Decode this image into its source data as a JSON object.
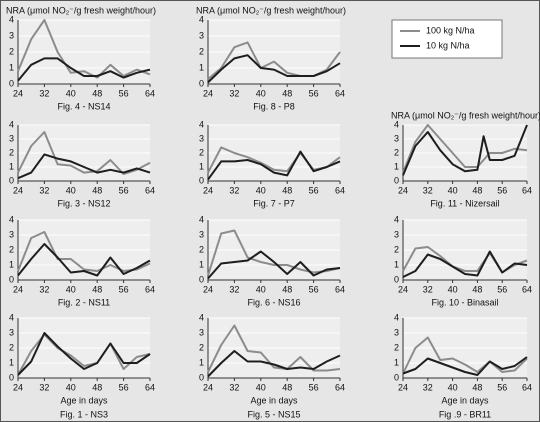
{
  "legend": [
    {
      "name": "100 kg N/ha",
      "color": "#8c8c8c"
    },
    {
      "name": "10 kg N/ha",
      "color": "#1e1e1e"
    }
  ],
  "chart_data": [
    {
      "type": "line",
      "title": "NRA (μmol NO₂⁻/g fresh weight/hour)",
      "caption": "Fig. 4 - NS14",
      "x": [
        24,
        28,
        32,
        36,
        40,
        44,
        48,
        52,
        56,
        60,
        64
      ],
      "series": [
        {
          "values": [
            0.8,
            2.8,
            4.0,
            2.0,
            0.7,
            0.8,
            0.4,
            1.2,
            0.5,
            0.9,
            0.6
          ]
        },
        {
          "values": [
            0.2,
            1.2,
            1.6,
            1.6,
            1.0,
            0.5,
            0.5,
            0.8,
            0.4,
            0.7,
            0.9
          ]
        }
      ],
      "xlim": [
        24,
        64
      ],
      "ylim": [
        0,
        4
      ],
      "xticks": [
        24,
        32,
        40,
        48,
        56,
        64
      ],
      "yticks": [
        0,
        1,
        2,
        3,
        4
      ]
    },
    {
      "type": "line",
      "caption": "Fig. 3 - NS12",
      "x": [
        24,
        28,
        32,
        36,
        40,
        44,
        48,
        52,
        56,
        60,
        64
      ],
      "series": [
        {
          "values": [
            0.6,
            2.5,
            3.5,
            1.2,
            1.1,
            0.6,
            0.7,
            1.5,
            0.5,
            0.8,
            1.3
          ]
        },
        {
          "values": [
            0.2,
            0.6,
            1.9,
            1.6,
            1.4,
            1.0,
            0.6,
            0.8,
            0.6,
            0.9,
            0.6
          ]
        }
      ],
      "xlim": [
        24,
        64
      ],
      "ylim": [
        0,
        4
      ],
      "xticks": [
        24,
        32,
        40,
        48,
        56,
        64
      ],
      "yticks": [
        0,
        1,
        2,
        3,
        4
      ]
    },
    {
      "type": "line",
      "caption": "Fig. 2 - NS11",
      "x": [
        24,
        28,
        32,
        36,
        40,
        44,
        48,
        52,
        56,
        60,
        64
      ],
      "series": [
        {
          "values": [
            0.6,
            2.8,
            3.2,
            1.4,
            1.4,
            0.7,
            0.6,
            1.0,
            0.6,
            0.7,
            1.1
          ]
        },
        {
          "values": [
            0.3,
            1.4,
            2.4,
            1.5,
            0.5,
            0.6,
            0.3,
            1.5,
            0.4,
            0.8,
            1.3
          ]
        }
      ],
      "xlim": [
        24,
        64
      ],
      "ylim": [
        0,
        4
      ],
      "xticks": [
        24,
        32,
        40,
        48,
        56,
        64
      ],
      "yticks": [
        0,
        1,
        2,
        3,
        4
      ]
    },
    {
      "type": "line",
      "xlabel": "Age in days",
      "caption": "Fig. 1 - NS3",
      "x": [
        24,
        28,
        32,
        36,
        40,
        44,
        48,
        52,
        56,
        60,
        64
      ],
      "series": [
        {
          "values": [
            0.2,
            1.8,
            2.9,
            2.0,
            1.5,
            0.8,
            1.0,
            2.3,
            0.6,
            1.4,
            1.6
          ]
        },
        {
          "values": [
            0.2,
            1.1,
            3.0,
            2.1,
            1.3,
            0.6,
            1.0,
            2.3,
            1.0,
            1.0,
            1.6
          ]
        }
      ],
      "xlim": [
        24,
        64
      ],
      "ylim": [
        0,
        4
      ],
      "xticks": [
        24,
        32,
        40,
        48,
        56,
        64
      ],
      "yticks": [
        0,
        1,
        2,
        3,
        4
      ]
    },
    {
      "type": "line",
      "title": "NRA (μmol NO₂⁻/g fresh weight/hour)",
      "caption": "Fig. 8 - P8",
      "x": [
        24,
        28,
        32,
        36,
        40,
        44,
        48,
        52,
        56,
        60,
        64
      ],
      "series": [
        {
          "values": [
            0.3,
            1.0,
            2.3,
            2.6,
            1.0,
            1.4,
            0.7,
            0.5,
            0.5,
            0.9,
            2.0
          ]
        },
        {
          "values": [
            0.1,
            0.9,
            1.6,
            1.8,
            1.0,
            0.9,
            0.5,
            0.5,
            0.5,
            0.8,
            1.3
          ]
        }
      ],
      "xlim": [
        24,
        64
      ],
      "ylim": [
        0,
        4
      ],
      "xticks": [
        24,
        32,
        40,
        48,
        56,
        64
      ],
      "yticks": [
        0,
        1,
        2,
        3,
        4
      ]
    },
    {
      "type": "line",
      "caption": "Fig. 7 - P7",
      "x": [
        24,
        28,
        32,
        36,
        40,
        44,
        48,
        52,
        56,
        60,
        64
      ],
      "series": [
        {
          "values": [
            0.6,
            2.4,
            2.0,
            1.7,
            1.3,
            0.8,
            0.7,
            2.0,
            0.8,
            1.0,
            1.7
          ]
        },
        {
          "values": [
            0.1,
            1.4,
            1.4,
            1.5,
            1.2,
            0.6,
            0.4,
            2.1,
            0.7,
            1.0,
            1.4
          ]
        }
      ],
      "xlim": [
        24,
        64
      ],
      "ylim": [
        0,
        4
      ],
      "xticks": [
        24,
        32,
        40,
        48,
        56,
        64
      ],
      "yticks": [
        0,
        1,
        2,
        3,
        4
      ]
    },
    {
      "type": "line",
      "caption": "Fig. 6 - NS16",
      "x": [
        24,
        28,
        32,
        36,
        40,
        44,
        48,
        52,
        56,
        60,
        64
      ],
      "series": [
        {
          "values": [
            0.3,
            3.1,
            3.3,
            1.5,
            1.2,
            1.0,
            1.0,
            0.7,
            0.5,
            0.6,
            0.8
          ]
        },
        {
          "values": [
            0.1,
            1.1,
            1.2,
            1.3,
            1.9,
            1.2,
            0.4,
            1.2,
            0.3,
            0.7,
            0.8
          ]
        }
      ],
      "xlim": [
        24,
        64
      ],
      "ylim": [
        0,
        4
      ],
      "xticks": [
        24,
        32,
        40,
        48,
        56,
        64
      ],
      "yticks": [
        0,
        1,
        2,
        3,
        4
      ]
    },
    {
      "type": "line",
      "xlabel": "Age in days",
      "caption": "Fig. 5 - NS15",
      "x": [
        24,
        28,
        32,
        36,
        40,
        44,
        48,
        52,
        56,
        60,
        64
      ],
      "series": [
        {
          "values": [
            0.4,
            2.2,
            3.5,
            1.8,
            1.7,
            0.7,
            0.6,
            1.4,
            0.5,
            0.5,
            0.6
          ]
        },
        {
          "values": [
            0.1,
            1.0,
            1.8,
            1.1,
            1.1,
            0.9,
            0.6,
            0.7,
            0.6,
            1.1,
            1.5
          ]
        }
      ],
      "xlim": [
        24,
        64
      ],
      "ylim": [
        0,
        4
      ],
      "xticks": [
        24,
        32,
        40,
        48,
        56,
        64
      ],
      "yticks": [
        0,
        1,
        2,
        3,
        4
      ]
    },
    {
      "type": "line",
      "title": "NRA (μmol NO₂⁻/g fresh weight/hour)",
      "caption": "Fig. 11 - Nizersail",
      "x": [
        24,
        28,
        32,
        36,
        40,
        44,
        48,
        50,
        52,
        56,
        60,
        64
      ],
      "series": [
        {
          "values": [
            0.6,
            2.8,
            4.0,
            3.0,
            2.0,
            1.0,
            1.0,
            1.5,
            2.0,
            2.0,
            2.3,
            2.2
          ]
        },
        {
          "values": [
            0.4,
            2.5,
            3.5,
            2.2,
            1.2,
            0.7,
            0.8,
            3.2,
            1.5,
            1.5,
            1.8,
            4.0
          ]
        }
      ],
      "xlim": [
        24,
        64
      ],
      "ylim": [
        0,
        4
      ],
      "xticks": [
        24,
        32,
        40,
        48,
        56,
        64
      ],
      "yticks": [
        0,
        1,
        2,
        3,
        4
      ]
    },
    {
      "type": "line",
      "caption": "Fig. 10 - Binasail",
      "x": [
        24,
        28,
        32,
        36,
        40,
        44,
        48,
        52,
        56,
        60,
        64
      ],
      "series": [
        {
          "values": [
            0.6,
            2.1,
            2.2,
            1.6,
            0.9,
            0.6,
            0.6,
            1.8,
            0.5,
            1.0,
            1.3
          ]
        },
        {
          "values": [
            0.2,
            0.6,
            1.7,
            1.4,
            0.9,
            0.4,
            0.3,
            1.9,
            0.5,
            1.1,
            1.0
          ]
        }
      ],
      "xlim": [
        24,
        64
      ],
      "ylim": [
        0,
        4
      ],
      "xticks": [
        24,
        32,
        40,
        48,
        56,
        64
      ],
      "yticks": [
        0,
        1,
        2,
        3,
        4
      ]
    },
    {
      "type": "line",
      "xlabel": "Age in days",
      "caption": "Fig .9 - BR11",
      "x": [
        24,
        28,
        32,
        36,
        40,
        44,
        48,
        52,
        56,
        60,
        64
      ],
      "series": [
        {
          "values": [
            0.3,
            2.0,
            2.7,
            1.2,
            1.3,
            0.9,
            0.4,
            1.1,
            0.4,
            0.5,
            1.3
          ]
        },
        {
          "values": [
            0.3,
            0.6,
            1.3,
            1.0,
            0.7,
            0.4,
            0.2,
            1.1,
            0.6,
            0.8,
            1.4
          ]
        }
      ],
      "xlim": [
        24,
        64
      ],
      "ylim": [
        0,
        4
      ],
      "xticks": [
        24,
        32,
        40,
        48,
        56,
        64
      ],
      "yticks": [
        0,
        1,
        2,
        3,
        4
      ]
    }
  ]
}
